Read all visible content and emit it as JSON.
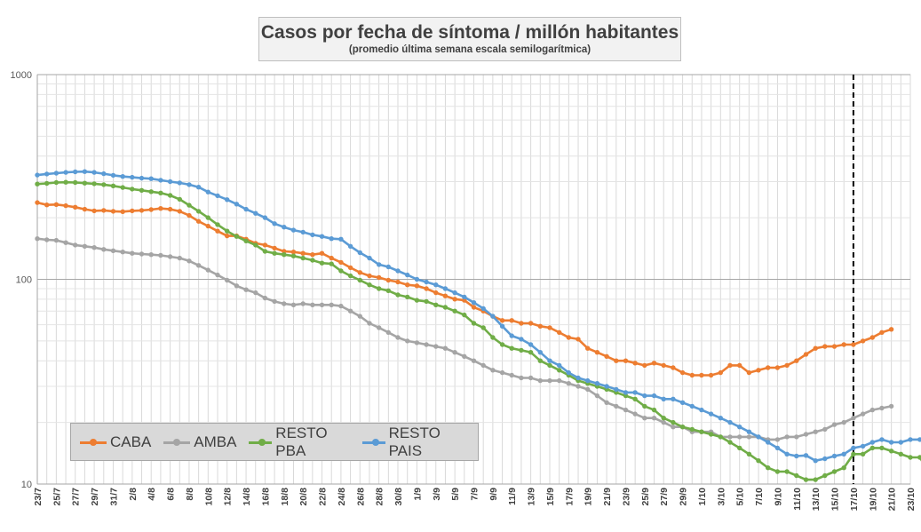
{
  "chart_data": {
    "type": "line",
    "title": "Casos por fecha de síntoma / millón habitantes",
    "subtitle": "(promedio última semana escala semilogarítmica)",
    "yscale": "log",
    "ylim": [
      10,
      1000
    ],
    "y_ticks": [
      "10",
      "100",
      "1000"
    ],
    "x_start": "23/7",
    "x_labels": [
      "23/7",
      "25/7",
      "27/7",
      "29/7",
      "31/7",
      "2/8",
      "4/8",
      "6/8",
      "8/8",
      "10/8",
      "12/8",
      "14/8",
      "16/8",
      "18/8",
      "20/8",
      "22/8",
      "24/8",
      "26/8",
      "28/8",
      "30/8",
      "1/9",
      "3/9",
      "5/9",
      "7/9",
      "9/9",
      "11/9",
      "13/9",
      "15/9",
      "17/9",
      "19/9",
      "21/9",
      "23/9",
      "25/9",
      "27/9",
      "29/9",
      "1/10",
      "3/10",
      "5/10",
      "7/10",
      "9/10",
      "11/10",
      "13/10",
      "15/10",
      "17/10",
      "19/10",
      "21/10",
      "23/10"
    ],
    "vertical_marker": "17/10",
    "legend": [
      "CABA",
      "AMBA",
      "RESTO PBA",
      "RESTO PAIS"
    ],
    "series": [
      {
        "name": "CABA",
        "color": "#ed7d31",
        "values": [
          237,
          231,
          232,
          229,
          225,
          220,
          216,
          217,
          215,
          214,
          216,
          217,
          219,
          222,
          220,
          215,
          205,
          192,
          182,
          172,
          163,
          163,
          157,
          150,
          147,
          142,
          137,
          136,
          134,
          132,
          134,
          127,
          121,
          114,
          108,
          104,
          102,
          99,
          97,
          94,
          93,
          90,
          86,
          83,
          80,
          79,
          73,
          70,
          66,
          63,
          63,
          61,
          61,
          59,
          58,
          55,
          52,
          51,
          46,
          44,
          42,
          40,
          40,
          39,
          38,
          39,
          38,
          37,
          35,
          34,
          34,
          34,
          35,
          38,
          38,
          35,
          36,
          37,
          37,
          38,
          40,
          43,
          46,
          47,
          47,
          48,
          48,
          50,
          52,
          55,
          57
        ]
      },
      {
        "name": "AMBA",
        "color": "#a5a5a5",
        "values": [
          158,
          156,
          155,
          151,
          147,
          145,
          143,
          140,
          138,
          136,
          134,
          133,
          132,
          131,
          129,
          127,
          123,
          117,
          111,
          105,
          99,
          93,
          89,
          86,
          81,
          78,
          76,
          75,
          76,
          75,
          75,
          75,
          74,
          70,
          66,
          61,
          58,
          55,
          52,
          50,
          49,
          48,
          47,
          46,
          44,
          42,
          40,
          38,
          36,
          35,
          34,
          33,
          33,
          32,
          32,
          32,
          31,
          30,
          29,
          27,
          25,
          24,
          23,
          22,
          21,
          21,
          20,
          19,
          19,
          18,
          18,
          18,
          17,
          17,
          17,
          17,
          17,
          16.5,
          16.5,
          17,
          17,
          17.5,
          18,
          18.5,
          19.5,
          20,
          21,
          22,
          23,
          23.5,
          24
        ]
      },
      {
        "name": "RESTO PBA",
        "color": "#70ad47",
        "values": [
          292,
          294,
          297,
          298,
          297,
          295,
          293,
          290,
          286,
          281,
          276,
          272,
          268,
          264,
          257,
          246,
          230,
          215,
          200,
          185,
          172,
          162,
          154,
          147,
          137,
          134,
          132,
          130,
          127,
          124,
          120,
          119,
          110,
          104,
          99,
          94,
          90,
          88,
          84,
          82,
          79,
          78,
          75,
          73,
          70,
          67,
          61,
          58,
          52,
          48,
          46,
          45,
          44,
          40,
          38,
          36,
          34,
          32,
          31,
          30,
          29,
          28,
          27,
          26,
          24,
          23,
          21,
          20,
          19,
          18.5,
          18,
          17.5,
          17,
          16,
          15,
          14,
          13,
          12,
          11.5,
          11.5,
          11,
          10.5,
          10.5,
          11,
          11.5,
          12,
          14,
          14,
          15,
          15,
          14.5,
          14,
          13.5,
          13.5,
          11.3
        ]
      },
      {
        "name": "RESTO PAIS",
        "color": "#5b9bd5",
        "values": [
          323,
          327,
          330,
          333,
          335,
          336,
          333,
          328,
          322,
          318,
          315,
          312,
          310,
          305,
          300,
          296,
          290,
          282,
          267,
          256,
          245,
          233,
          220,
          210,
          200,
          187,
          180,
          174,
          170,
          165,
          162,
          158,
          157,
          145,
          135,
          127,
          118,
          115,
          110,
          105,
          100,
          97,
          94,
          90,
          86,
          82,
          77,
          72,
          66,
          59,
          53,
          51,
          48,
          44,
          40,
          38,
          35,
          33,
          32,
          31,
          30,
          29,
          28,
          28,
          27,
          27,
          26,
          26,
          25,
          24,
          23,
          22,
          21,
          20,
          19,
          18,
          17,
          16,
          15,
          14,
          13.7,
          13.8,
          13,
          13.3,
          13.7,
          14,
          15,
          15.3,
          16,
          16.5,
          16,
          16,
          16.5,
          16.5,
          16
        ]
      }
    ]
  }
}
